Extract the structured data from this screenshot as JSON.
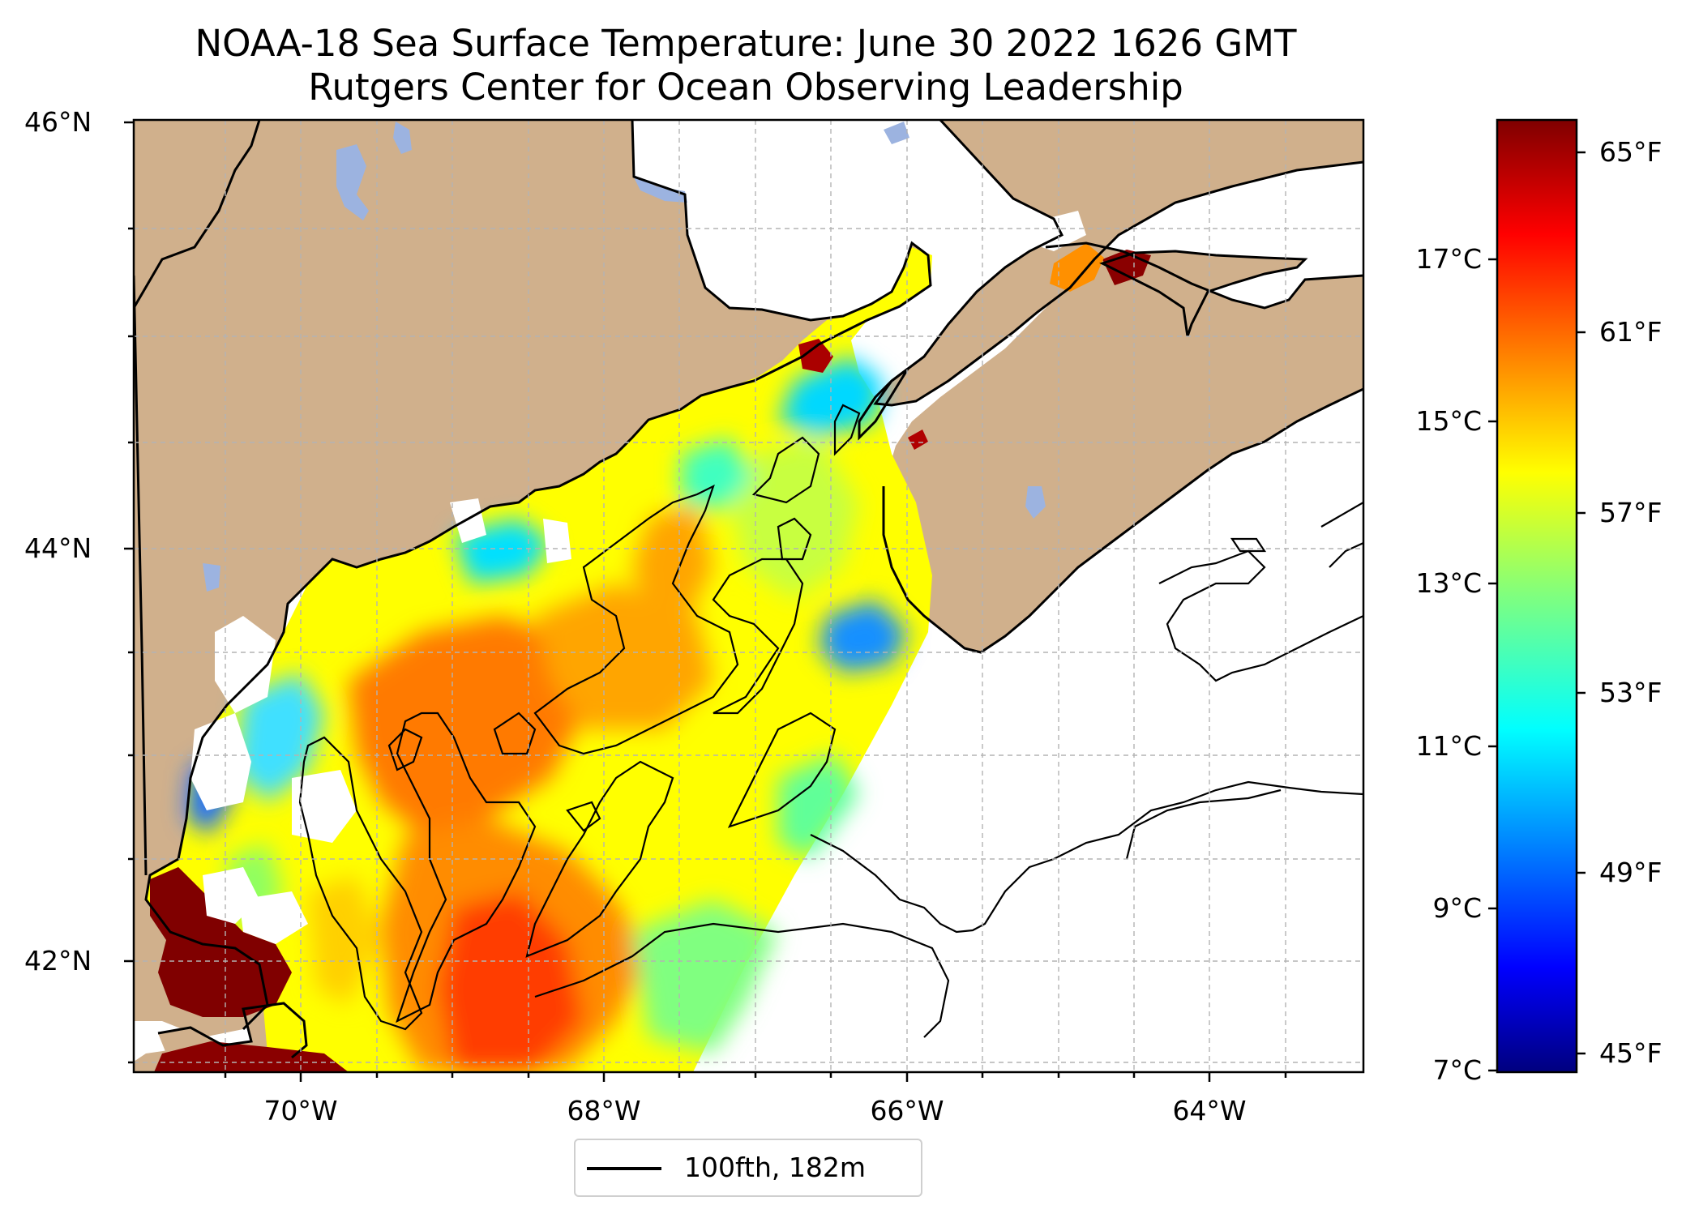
{
  "figure": {
    "title_line1": "NOAA-18 Sea Surface Temperature: June 30 2022 1626 GMT",
    "title_line2": "Rutgers Center for Ocean Observing Leadership"
  },
  "map": {
    "lat_ticks": [
      "46°N",
      "44°N",
      "42°N"
    ],
    "lon_ticks": [
      "70°W",
      "68°W",
      "66°W",
      "64°W"
    ],
    "legend_label": "100fth, 182m",
    "land_color": "#d0b08c",
    "lake_color": "#9cb3e0",
    "gridline_color": "#b3b3b3"
  },
  "colorbar": {
    "celsius_ticks": [
      "17°C",
      "15°C",
      "13°C",
      "11°C",
      "9°C",
      "7°C"
    ],
    "fahrenheit_ticks": [
      "65°F",
      "61°F",
      "57°F",
      "53°F",
      "49°F",
      "45°F"
    ],
    "colormap": "jet",
    "range_celsius": [
      7,
      18.7
    ]
  }
}
